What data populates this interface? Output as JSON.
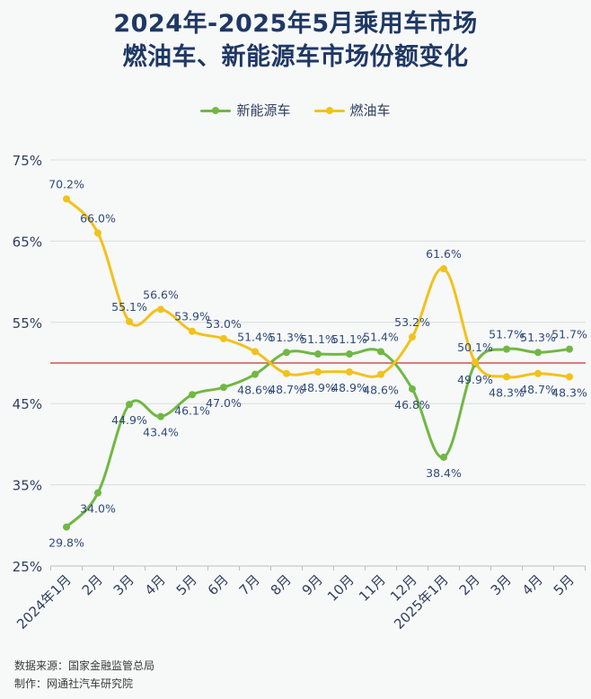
{
  "title_line1": "2024年-2025年5月乘用车市场",
  "title_line2": "燃油车、新能源车市场份额变化",
  "source_line": "数据来源：国家金融监管总局",
  "maker_line": "制作：网通社汽车研究院",
  "chart_data": {
    "type": "line",
    "categories": [
      "2024年1月",
      "2月",
      "3月",
      "4月",
      "5月",
      "6月",
      "7月",
      "8月",
      "9月",
      "10月",
      "11月",
      "12月",
      "2025年1月",
      "2月",
      "3月",
      "4月",
      "5月"
    ],
    "series": [
      {
        "name": "新能源车",
        "color": "#70b843",
        "values": [
          29.8,
          34.0,
          44.9,
          43.4,
          46.1,
          47.0,
          48.6,
          51.3,
          51.1,
          51.1,
          51.4,
          46.8,
          38.4,
          49.9,
          51.7,
          51.3,
          51.7
        ],
        "labels": [
          "29.8%",
          "34.0%",
          "44.9%",
          "43.4%",
          "46.1%",
          "47.0%",
          "48.6%",
          "51.3%",
          "51.1%",
          "51.1%",
          "51.4%",
          "46.8%",
          "38.4%",
          "49.9%",
          "51.7%",
          "51.3%",
          "51.7%"
        ]
      },
      {
        "name": "燃油车",
        "color": "#f1c21b",
        "values": [
          70.2,
          66.0,
          55.1,
          56.6,
          53.9,
          53.0,
          51.4,
          48.7,
          48.9,
          48.9,
          48.6,
          53.2,
          61.6,
          50.1,
          48.3,
          48.7,
          48.3
        ],
        "labels": [
          "70.2%",
          "66.0%",
          "55.1%",
          "56.6%",
          "53.9%",
          "53.0%",
          "51.4%",
          "48.7%",
          "48.9%",
          "48.9%",
          "48.6%",
          "53.2%",
          "61.6%",
          "50.1%",
          "48.3%",
          "48.7%",
          "48.3%"
        ]
      }
    ],
    "y_ticks": [
      "25%",
      "35%",
      "45%",
      "55%",
      "65%",
      "75%"
    ],
    "ylim": [
      25,
      75
    ],
    "reference_line": 50,
    "reference_color": "#c0392b",
    "grid": true,
    "legend_position": "top-center"
  }
}
